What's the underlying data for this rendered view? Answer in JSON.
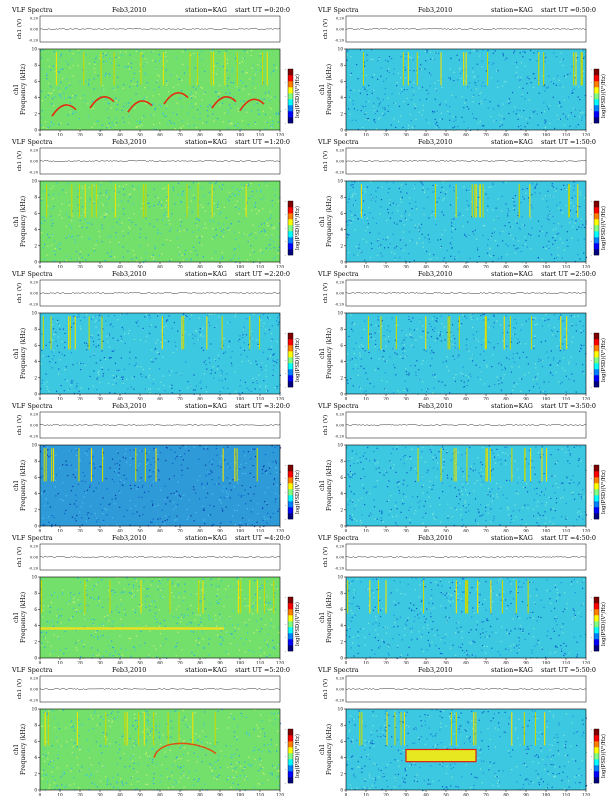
{
  "common": {
    "figure_title": "VLF Spectra",
    "station_label": "station=KAG",
    "ch_label": "ch1 (V)",
    "ch_ticks": [
      "0.20",
      "0.00",
      "-0.20"
    ],
    "freq_label_line1": "ch1",
    "freq_label_line2": "Frequency (kHz)",
    "time_label": "Time (sec)",
    "colorbar_label": "log(PSD)(V²/Hz)",
    "colorbar_colors": [
      "#000080",
      "#0000ff",
      "#0080ff",
      "#00ffff",
      "#80ff80",
      "#ffff00",
      "#ff8000",
      "#ff0000",
      "#800000"
    ],
    "colorbar_ticks": [
      "-",
      "-",
      "-",
      "-",
      "-"
    ]
  },
  "chart_data": [
    {
      "type": "heatmap",
      "title": "VLF Spectra",
      "date": "Feb3,2010",
      "start_ut": "start UT =0:20:0",
      "x": {
        "label": "Time (sec)",
        "range": [
          0,
          120
        ],
        "ticks": [
          0,
          10,
          20,
          30,
          40,
          50,
          60,
          70,
          80,
          90,
          100,
          110,
          120
        ]
      },
      "y": {
        "label": "Frequency (kHz)",
        "range": [
          0,
          10
        ],
        "ticks": [
          0,
          2,
          4,
          6,
          8,
          10
        ]
      },
      "background": "green",
      "features": "bright rising tone bursts 2-6 kHz, vertical sferics"
    },
    {
      "type": "heatmap",
      "title": "VLF Spectra",
      "date": "Feb3,2010",
      "start_ut": "start UT =0:50:0",
      "x": {
        "label": "Time (sec)",
        "range": [
          0,
          120
        ],
        "ticks": [
          0,
          10,
          20,
          30,
          40,
          50,
          60,
          70,
          80,
          90,
          100,
          110,
          120
        ]
      },
      "y": {
        "label": "Frequency (kHz)",
        "range": [
          0,
          10
        ],
        "ticks": [
          0,
          2,
          4,
          6,
          8,
          10
        ]
      },
      "background": "cyan",
      "features": "vertical sferics"
    },
    {
      "type": "heatmap",
      "title": "VLF Spectra",
      "date": "Feb3,2010",
      "start_ut": "start UT =1:20:0",
      "x": {
        "label": "Time (sec)",
        "range": [
          0,
          120
        ],
        "ticks": [
          0,
          10,
          20,
          30,
          40,
          50,
          60,
          70,
          80,
          90,
          100,
          110,
          120
        ]
      },
      "y": {
        "label": "Frequency (kHz)",
        "range": [
          0,
          10
        ],
        "ticks": [
          0,
          2,
          4,
          6,
          8,
          10
        ]
      },
      "background": "green",
      "features": "vertical sferics"
    },
    {
      "type": "heatmap",
      "title": "VLF Spectra",
      "date": "Feb3,2010",
      "start_ut": "start UT =1:50:0",
      "x": {
        "label": "Time (sec)",
        "range": [
          0,
          120
        ],
        "ticks": [
          0,
          10,
          20,
          30,
          40,
          50,
          60,
          70,
          80,
          90,
          100,
          110,
          120
        ]
      },
      "y": {
        "label": "Frequency (kHz)",
        "range": [
          0,
          10
        ],
        "ticks": [
          0,
          2,
          4,
          6,
          8,
          10
        ]
      },
      "background": "cyan",
      "features": "vertical sferics"
    },
    {
      "type": "heatmap",
      "title": "VLF Spectra",
      "date": "Feb3,2010",
      "start_ut": "start UT =2:20:0",
      "x": {
        "label": "Time (sec)",
        "range": [
          0,
          120
        ],
        "ticks": [
          0,
          10,
          20,
          30,
          40,
          50,
          60,
          70,
          80,
          90,
          100,
          110,
          120
        ]
      },
      "y": {
        "label": "Frequency (kHz)",
        "range": [
          0,
          10
        ],
        "ticks": [
          0,
          2,
          4,
          6,
          8,
          10
        ]
      },
      "background": "cyan",
      "features": "vertical sferics"
    },
    {
      "type": "heatmap",
      "title": "VLF Spectra",
      "date": "Feb3,2010",
      "start_ut": "start UT =2:50:0",
      "x": {
        "label": "Time (sec)",
        "range": [
          0,
          120
        ],
        "ticks": [
          0,
          10,
          20,
          30,
          40,
          50,
          60,
          70,
          80,
          90,
          100,
          110,
          120
        ]
      },
      "y": {
        "label": "Frequency (kHz)",
        "range": [
          0,
          10
        ],
        "ticks": [
          0,
          2,
          4,
          6,
          8,
          10
        ]
      },
      "background": "cyan",
      "features": "vertical sferics"
    },
    {
      "type": "heatmap",
      "title": "VLF Spectra",
      "date": "Feb3,2010",
      "start_ut": "start UT =3:20:0",
      "x": {
        "label": "Time (sec)",
        "range": [
          0,
          120
        ],
        "ticks": [
          0,
          10,
          20,
          30,
          40,
          50,
          60,
          70,
          80,
          90,
          100,
          110,
          120
        ]
      },
      "y": {
        "label": "Frequency (kHz)",
        "range": [
          0,
          10
        ],
        "ticks": [
          0,
          2,
          4,
          6,
          8,
          10
        ]
      },
      "background": "blue",
      "features": "vertical sferics"
    },
    {
      "type": "heatmap",
      "title": "VLF Spectra",
      "date": "Feb3,2010",
      "start_ut": "start UT =3:50:0",
      "x": {
        "label": "Time (sec)",
        "range": [
          0,
          120
        ],
        "ticks": [
          0,
          10,
          20,
          30,
          40,
          50,
          60,
          70,
          80,
          90,
          100,
          110,
          120
        ]
      },
      "y": {
        "label": "Frequency (kHz)",
        "range": [
          0,
          10
        ],
        "ticks": [
          0,
          2,
          4,
          6,
          8,
          10
        ]
      },
      "background": "cyan",
      "features": "vertical sferics"
    },
    {
      "type": "heatmap",
      "title": "VLF Spectra",
      "date": "Feb3,2010",
      "start_ut": "start UT =4:20:0",
      "x": {
        "label": "Time (sec)",
        "range": [
          0,
          120
        ],
        "ticks": [
          0,
          10,
          20,
          30,
          40,
          50,
          60,
          70,
          80,
          90,
          100,
          110,
          120
        ]
      },
      "y": {
        "label": "Frequency (kHz)",
        "range": [
          0,
          10
        ],
        "ticks": [
          0,
          2,
          4,
          6,
          8,
          10
        ]
      },
      "background": "green",
      "features": "horizontal band near 3.5 kHz, vertical sferics"
    },
    {
      "type": "heatmap",
      "title": "VLF Spectra",
      "date": "Feb3,2010",
      "start_ut": "start UT =4:50:0",
      "x": {
        "label": "Time (sec)",
        "range": [
          0,
          120
        ],
        "ticks": [
          0,
          10,
          20,
          30,
          40,
          50,
          60,
          70,
          80,
          90,
          100,
          110,
          120
        ]
      },
      "y": {
        "label": "Frequency (kHz)",
        "range": [
          0,
          10
        ],
        "ticks": [
          0,
          2,
          4,
          6,
          8,
          10
        ]
      },
      "background": "cyan",
      "features": "vertical sferics"
    },
    {
      "type": "heatmap",
      "title": "VLF Spectra",
      "date": "Feb3,2010",
      "start_ut": "start UT =5:20:0",
      "x": {
        "label": "Time (sec)",
        "range": [
          0,
          120
        ],
        "ticks": [
          0,
          10,
          20,
          30,
          40,
          50,
          60,
          70,
          80,
          90,
          100,
          110,
          120
        ]
      },
      "y": {
        "label": "Frequency (kHz)",
        "range": [
          0,
          10
        ],
        "ticks": [
          0,
          2,
          4,
          6,
          8,
          10
        ]
      },
      "background": "green",
      "features": "emission bursts 4-6 kHz between 55-90 s"
    },
    {
      "type": "heatmap",
      "title": "VLF Spectra",
      "date": "Feb3,2010",
      "start_ut": "start UT =5:50:0",
      "x": {
        "label": "Time (sec)",
        "range": [
          0,
          120
        ],
        "ticks": [
          0,
          10,
          20,
          30,
          40,
          50,
          60,
          70,
          80,
          90,
          100,
          110,
          120
        ]
      },
      "y": {
        "label": "Frequency (kHz)",
        "range": [
          0,
          10
        ],
        "ticks": [
          0,
          2,
          4,
          6,
          8,
          10
        ]
      },
      "background": "cyan",
      "features": "intense emission 3.5-5 kHz between 30-65 s"
    }
  ]
}
